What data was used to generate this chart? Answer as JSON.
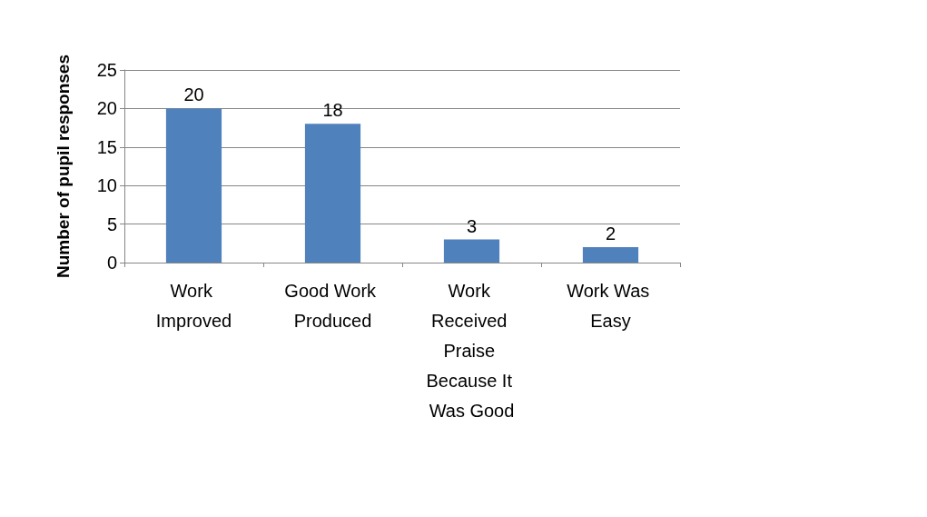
{
  "chart_data": {
    "type": "bar",
    "ylabel": "Number of pupil responses",
    "categories": [
      "Work Improved",
      "Good Work Produced",
      "Work Received Praise Because It Was Good",
      "Work Was Easy"
    ],
    "values": [
      20,
      18,
      3,
      2
    ],
    "color": "#4f81bd",
    "ylim": [
      0,
      25
    ],
    "yticks": [
      0,
      5,
      10,
      15,
      20,
      25
    ],
    "grid": "y",
    "data_labels": true
  }
}
